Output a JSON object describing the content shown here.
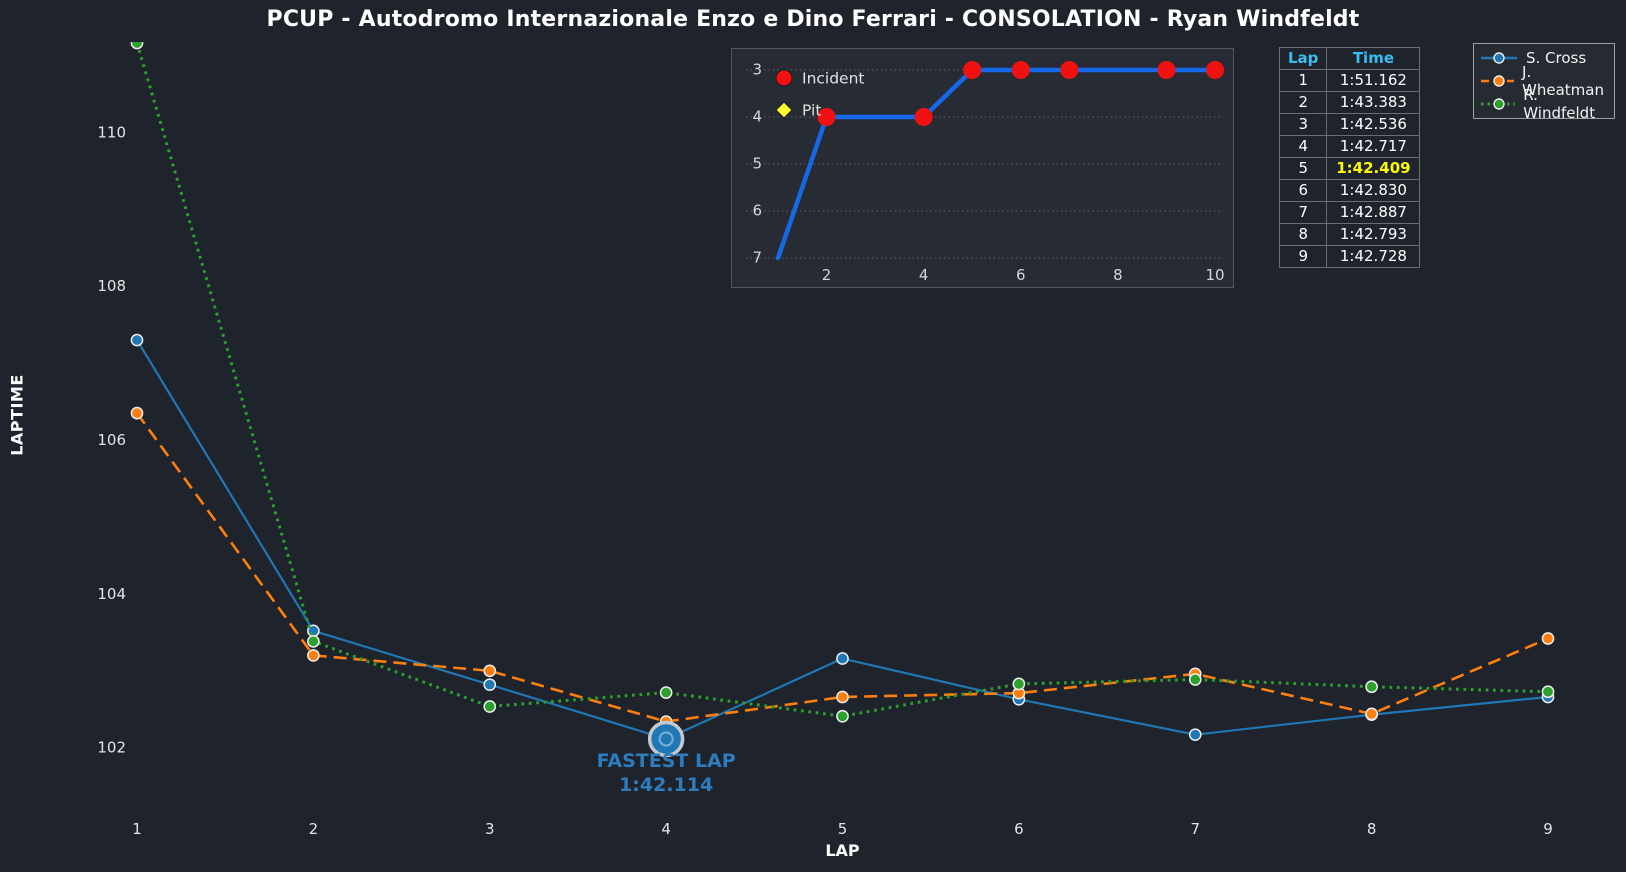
{
  "title": "PCUP - Autodromo Internazionale Enzo e Dino Ferrari - CONSOLATION - Ryan Windfeldt",
  "colors": {
    "background": "#1f232b",
    "inset_background": "#262b34",
    "inset_border": "#53585f",
    "blue": "#1f77b4",
    "orange": "#ff7f0e",
    "green": "#2ca02c",
    "inset_line_blue": "#1569e8",
    "incident_red": "#f21111",
    "pit_yellow": "#ffff2e",
    "fastest_yellow": "#ffff00",
    "header_cyan": "#38bdf0",
    "annotation_blue": "#2d7dbe",
    "tick_text": "#e4e4e4",
    "text": "#ffffff"
  },
  "chart_data": [
    {
      "type": "line",
      "name": "laptime-chart",
      "xlabel": "LAP",
      "ylabel": "LAPTIME",
      "x": [
        1,
        2,
        3,
        4,
        5,
        6,
        7,
        8,
        9
      ],
      "xticks": [
        1,
        2,
        3,
        4,
        5,
        6,
        7,
        8,
        9
      ],
      "yticks": [
        102,
        104,
        106,
        108,
        110
      ],
      "ylim": [
        101.4,
        111.7
      ],
      "grid": false,
      "legend_position": "upper right",
      "series": [
        {
          "name": "S. Cross",
          "color": "#1f77b4",
          "style": "solid",
          "values": [
            107.3,
            103.52,
            102.82,
            102.114,
            103.16,
            102.63,
            102.17,
            102.43,
            102.66
          ]
        },
        {
          "name": "J. Wheatman",
          "color": "#ff7f0e",
          "style": "dashed",
          "values": [
            106.35,
            103.2,
            103.0,
            102.34,
            102.66,
            102.71,
            102.96,
            102.44,
            103.42
          ]
        },
        {
          "name": "R. Windfeldt",
          "color": "#2ca02c",
          "style": "dotted",
          "values": [
            111.162,
            103.383,
            102.536,
            102.717,
            102.409,
            102.83,
            102.887,
            102.793,
            102.728
          ]
        }
      ],
      "annotation": {
        "label": "FASTEST LAP",
        "value": "1:42.114",
        "x": 4,
        "y": 102.114,
        "series": "S. Cross"
      }
    },
    {
      "type": "line",
      "name": "position-chart",
      "x": [
        1,
        2,
        3,
        4,
        5,
        6,
        7,
        8,
        9,
        10
      ],
      "values": [
        7,
        4,
        4,
        4,
        3,
        3,
        3,
        3,
        3,
        3
      ],
      "xticks": [
        2,
        4,
        6,
        8,
        10
      ],
      "yticks": [
        3,
        4,
        5,
        6,
        7
      ],
      "y_inverted": true,
      "grid": "horizontal-dotted",
      "incident_laps": [
        2,
        4,
        5,
        6,
        7,
        9,
        10
      ],
      "pit_laps": [],
      "legend": [
        {
          "label": "Incident",
          "marker": "circle",
          "color": "#f21111"
        },
        {
          "label": "Pit",
          "marker": "diamond",
          "color": "#ffff2e"
        }
      ]
    }
  ],
  "lap_table": {
    "headers": [
      "Lap",
      "Time"
    ],
    "rows": [
      {
        "lap": "1",
        "time": "1:51.162",
        "highlight": false
      },
      {
        "lap": "2",
        "time": "1:43.383",
        "highlight": false
      },
      {
        "lap": "3",
        "time": "1:42.536",
        "highlight": false
      },
      {
        "lap": "4",
        "time": "1:42.717",
        "highlight": false
      },
      {
        "lap": "5",
        "time": "1:42.409",
        "highlight": true
      },
      {
        "lap": "6",
        "time": "1:42.830",
        "highlight": false
      },
      {
        "lap": "7",
        "time": "1:42.887",
        "highlight": false
      },
      {
        "lap": "8",
        "time": "1:42.793",
        "highlight": false
      },
      {
        "lap": "9",
        "time": "1:42.728",
        "highlight": false
      }
    ]
  },
  "legend": {
    "items": [
      {
        "label": "S. Cross",
        "color": "#1f77b4",
        "style": "solid"
      },
      {
        "label": "J. Wheatman",
        "color": "#ff7f0e",
        "style": "dashed"
      },
      {
        "label": "R. Windfeldt",
        "color": "#2ca02c",
        "style": "dotted"
      }
    ]
  }
}
